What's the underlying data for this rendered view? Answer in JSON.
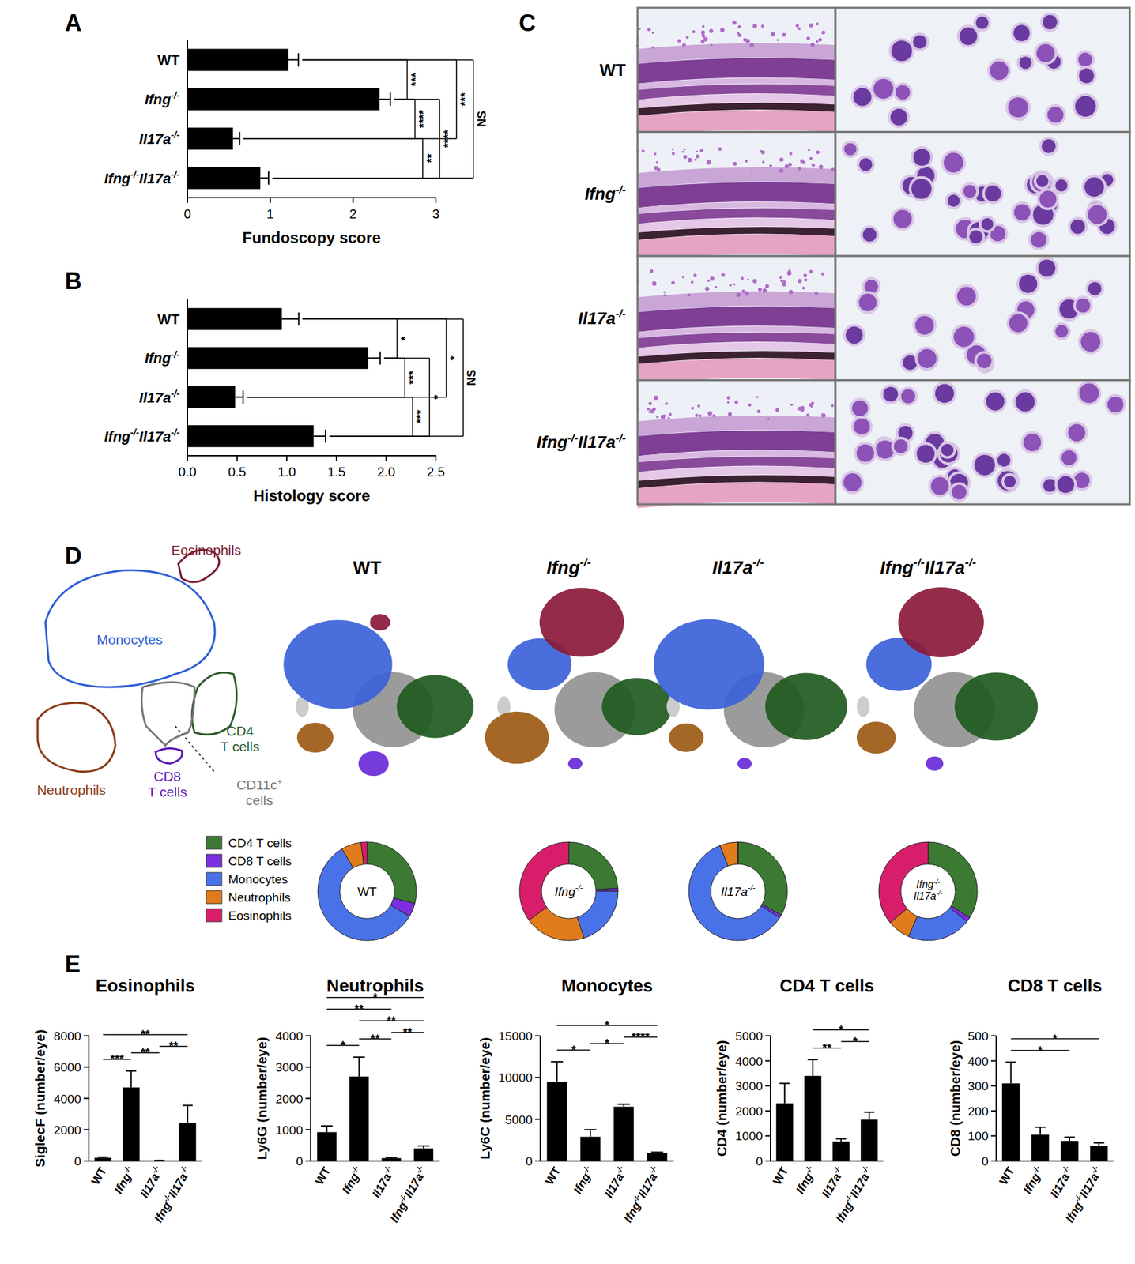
{
  "chart_data": [
    {
      "type": "bar",
      "orientation": "horizontal",
      "label": "A",
      "x_label": "Fundoscopy score",
      "categories": [
        "WT",
        "Ifng-/-",
        "Il17a-/-",
        "Ifng-/-Il17a-/-"
      ],
      "values": [
        1.22,
        2.32,
        0.55,
        0.88
      ],
      "errors": [
        0.12,
        0.13,
        0.08,
        0.1
      ],
      "xlim": [
        0,
        3
      ],
      "xticks": [
        0,
        1,
        2,
        3
      ],
      "color": "#000000",
      "comparisons": [
        {
          "pair": [
            0,
            1
          ],
          "label": "***"
        },
        {
          "pair": [
            1,
            2
          ],
          "label": "****"
        },
        {
          "pair": [
            2,
            3
          ],
          "label": "**"
        },
        {
          "pair": [
            1,
            3
          ],
          "label": "****"
        },
        {
          "pair": [
            0,
            2
          ],
          "label": "***"
        },
        {
          "pair": [
            0,
            3
          ],
          "label": "NS"
        }
      ]
    },
    {
      "type": "bar",
      "orientation": "horizontal",
      "label": "B",
      "x_label": "Histology score",
      "categories": [
        "WT",
        "Ifng-/-",
        "Il17a-/-",
        "Ifng-/-Il17a-/-"
      ],
      "values": [
        0.95,
        1.82,
        0.48,
        1.27
      ],
      "errors": [
        0.17,
        0.12,
        0.08,
        0.12
      ],
      "xlim": [
        0,
        2.5
      ],
      "xticks": [
        {
          "value": 0,
          "label": "0.0"
        },
        0.5,
        {
          "value": 1,
          "label": "1.0"
        },
        1.5,
        {
          "value": 2,
          "label": "2.0"
        },
        2.5
      ],
      "color": "#000000",
      "comparisons": [
        {
          "pair": [
            0,
            1
          ],
          "label": "*"
        },
        {
          "pair": [
            1,
            2
          ],
          "label": "***"
        },
        {
          "pair": [
            2,
            3
          ],
          "label": "***"
        },
        {
          "pair": [
            1,
            3
          ],
          "label": "*"
        },
        {
          "pair": [
            0,
            2
          ],
          "label": "*"
        },
        {
          "pair": [
            0,
            3
          ],
          "label": "NS"
        }
      ]
    },
    {
      "type": "pie",
      "center_label": "WT",
      "categories": [
        "CD4 T cells",
        "CD8 T cells",
        "Monocytes",
        "Neutrophils",
        "Eosinophils"
      ],
      "values": [
        29,
        4.5,
        58,
        6.5,
        2
      ],
      "colors": [
        "#3c7a34",
        "#7b2fe0",
        "#4a72e8",
        "#e07c1c",
        "#d81e6b"
      ],
      "legend": "left"
    },
    {
      "type": "pie",
      "center_label": "Ifng-/-",
      "categories": [
        "CD4 T cells",
        "CD8 T cells",
        "Monocytes",
        "Neutrophils",
        "Eosinophils"
      ],
      "values": [
        24,
        1,
        20,
        20,
        35
      ],
      "colors": [
        "#3c7a34",
        "#7b2fe0",
        "#4a72e8",
        "#e07c1c",
        "#d81e6b"
      ]
    },
    {
      "type": "pie",
      "center_label": "Il17a-/-",
      "categories": [
        "CD4 T cells",
        "CD8 T cells",
        "Monocytes",
        "Neutrophils",
        "Eosinophils"
      ],
      "values": [
        33,
        1,
        60,
        6,
        0
      ],
      "colors": [
        "#3c7a34",
        "#7b2fe0",
        "#4a72e8",
        "#e07c1c",
        "#d81e6b"
      ]
    },
    {
      "type": "pie",
      "center_label": "Ifng-/-Il17a-/-",
      "categories": [
        "CD4 T cells",
        "CD8 T cells",
        "Monocytes",
        "Neutrophils",
        "Eosinophils"
      ],
      "values": [
        34,
        1.5,
        21,
        7.5,
        36
      ],
      "colors": [
        "#3c7a34",
        "#7b2fe0",
        "#4a72e8",
        "#e07c1c",
        "#d81e6b"
      ]
    },
    {
      "type": "bar",
      "label": "E",
      "title": "Eosinophils",
      "y_label": "SiglecF (number/eye)",
      "categories": [
        "WT",
        "Ifng-/-",
        "Il17a-/-",
        "Ifng-/-Il17a-/-"
      ],
      "values": [
        200,
        4700,
        30,
        2450
      ],
      "errors": [
        50,
        1050,
        10,
        1100
      ],
      "ylim": [
        0,
        8000
      ],
      "yticks": [
        0,
        2000,
        4000,
        6000,
        8000
      ],
      "color": "#000000",
      "comparisons": [
        {
          "pair": [
            0,
            1
          ],
          "label": "***"
        },
        {
          "pair": [
            1,
            2
          ],
          "label": "**"
        },
        {
          "pair": [
            2,
            3
          ],
          "label": "**"
        },
        {
          "pair": [
            0,
            3
          ],
          "label": "**"
        }
      ]
    },
    {
      "type": "bar",
      "title": "Neutrophils",
      "y_label": "Ly6G (number/eye)",
      "categories": [
        "WT",
        "Ifng-/-",
        "Il17a-/-",
        "Ifng-/-Il17a-/-"
      ],
      "values": [
        920,
        2700,
        90,
        400
      ],
      "errors": [
        200,
        620,
        20,
        80
      ],
      "ylim": [
        0,
        4000
      ],
      "yticks": [
        0,
        1000,
        2000,
        3000,
        4000
      ],
      "color": "#000000",
      "comparisons": [
        {
          "pair": [
            0,
            1
          ],
          "label": "*"
        },
        {
          "pair": [
            1,
            2
          ],
          "label": "**"
        },
        {
          "pair": [
            2,
            3
          ],
          "label": "**"
        },
        {
          "pair": [
            1,
            3
          ],
          "label": "**"
        },
        {
          "pair": [
            0,
            2
          ],
          "label": "**"
        },
        {
          "pair": [
            0,
            3
          ],
          "label": "*"
        }
      ]
    },
    {
      "type": "bar",
      "title": "Monocytes",
      "y_label": "Ly6C (number/eye)",
      "categories": [
        "WT",
        "Ifng-/-",
        "Il17a-/-",
        "Ifng-/-Il17a-/-"
      ],
      "values": [
        9500,
        2900,
        6500,
        950
      ],
      "errors": [
        2400,
        850,
        300,
        100
      ],
      "ylim": [
        0,
        15000
      ],
      "yticks": [
        0,
        5000,
        10000,
        15000
      ],
      "color": "#000000",
      "comparisons": [
        {
          "pair": [
            0,
            1
          ],
          "label": "*"
        },
        {
          "pair": [
            1,
            2
          ],
          "label": "*"
        },
        {
          "pair": [
            2,
            3
          ],
          "label": "****"
        },
        {
          "pair": [
            0,
            3
          ],
          "label": "*"
        }
      ]
    },
    {
      "type": "bar",
      "title": "CD4 T cells",
      "y_label": "CD4 (number/eye)",
      "categories": [
        "WT",
        "Ifng-/-",
        "Il17a-/-",
        "Ifng-/-Il17a-/-"
      ],
      "values": [
        2300,
        3400,
        780,
        1650
      ],
      "errors": [
        800,
        650,
        100,
        300
      ],
      "ylim": [
        0,
        5000
      ],
      "yticks": [
        0,
        1000,
        2000,
        3000,
        4000,
        5000
      ],
      "color": "#000000",
      "comparisons": [
        {
          "pair": [
            1,
            2
          ],
          "label": "**"
        },
        {
          "pair": [
            2,
            3
          ],
          "label": "*"
        },
        {
          "pair": [
            1,
            3
          ],
          "label": "*"
        }
      ]
    },
    {
      "type": "bar",
      "title": "CD8 T cells",
      "y_label": "CD8 (number/eye)",
      "categories": [
        "WT",
        "Ifng-/-",
        "Il17a-/-",
        "Ifng-/-Il17a-/-"
      ],
      "values": [
        310,
        105,
        80,
        60
      ],
      "errors": [
        85,
        30,
        15,
        12
      ],
      "ylim": [
        0,
        500
      ],
      "yticks": [
        0,
        100,
        200,
        300,
        400,
        500
      ],
      "color": "#000000",
      "comparisons": [
        {
          "pair": [
            0,
            2
          ],
          "label": "*"
        },
        {
          "pair": [
            0,
            3
          ],
          "label": "*"
        }
      ]
    }
  ],
  "histology": {
    "label": "C",
    "rows": [
      "WT",
      "Ifng-/-",
      "Il17a-/-",
      "Ifng-/-Il17a-/-"
    ]
  },
  "tsne": {
    "label": "D",
    "titles": [
      "WT",
      "Ifng-/-",
      "Il17a-/-",
      "Ifng-/-Il17a-/-"
    ],
    "schematic": [
      [
        "Eosinophils"
      ],
      [
        "Monocytes"
      ],
      [
        "Neutrophils"
      ],
      [
        "CD8",
        "T cells"
      ],
      [
        "CD4",
        "T cells"
      ],
      [
        "CD11c+",
        "cells"
      ]
    ]
  }
}
